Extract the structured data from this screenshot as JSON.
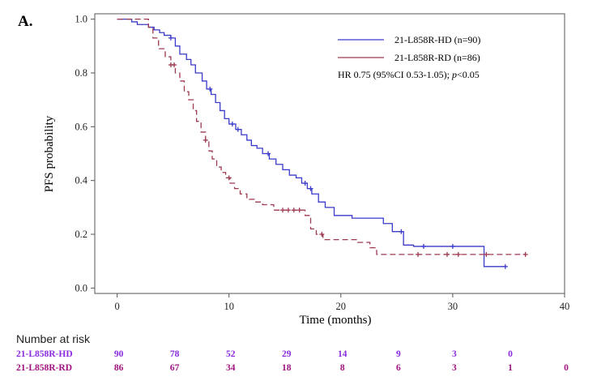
{
  "panel_label": "A.",
  "colors": {
    "hd": "#3a3acc",
    "rd": "#9e3a50",
    "risk_hd": "#8a2be2",
    "risk_rd": "#a0127f"
  },
  "chart_data": {
    "type": "line",
    "subtype": "kaplan-meier",
    "xlabel": "Time (months)",
    "ylabel": "PFS probability",
    "xlim": [
      -2,
      40
    ],
    "ylim": [
      -0.02,
      1.02
    ],
    "xticks": [
      "0",
      "10",
      "20",
      "30",
      "40"
    ],
    "yticks": [
      "0.0",
      "0.2",
      "0.4",
      "0.6",
      "0.8",
      "1.0"
    ],
    "legend_position": "top-right",
    "annotation": {
      "prefix": "HR 0.75 (95%CI 0.53-1.05);  ",
      "p_symbol": "p",
      "suffix": "<0.05"
    },
    "series": [
      {
        "name": "21-L858R-HD (n=90)",
        "style": "solid",
        "x": [
          0,
          1.3,
          1.8,
          2.8,
          3.3,
          3.8,
          4.2,
          4.8,
          5.2,
          5.6,
          6.2,
          6.6,
          7.0,
          7.6,
          8.0,
          8.4,
          8.8,
          9.2,
          9.6,
          10.0,
          10.6,
          11.1,
          11.6,
          12.0,
          12.5,
          13.0,
          13.6,
          14.2,
          14.8,
          15.4,
          16.0,
          16.5,
          17.0,
          17.4,
          18.0,
          18.6,
          19.4,
          21.0,
          23.8,
          24.6,
          25.6,
          26.5,
          28.5,
          30.5,
          32.8,
          34.7
        ],
        "y": [
          1.0,
          0.99,
          0.98,
          0.97,
          0.96,
          0.95,
          0.94,
          0.93,
          0.9,
          0.87,
          0.85,
          0.83,
          0.8,
          0.77,
          0.74,
          0.72,
          0.69,
          0.66,
          0.63,
          0.61,
          0.59,
          0.57,
          0.55,
          0.53,
          0.52,
          0.5,
          0.48,
          0.46,
          0.44,
          0.42,
          0.41,
          0.39,
          0.37,
          0.35,
          0.32,
          0.3,
          0.27,
          0.26,
          0.24,
          0.21,
          0.16,
          0.155,
          0.155,
          0.155,
          0.08,
          0.08
        ],
        "censored_x": [
          4.8,
          8.3,
          10.3,
          10.8,
          13.5,
          16.8,
          17.3,
          25.4,
          27.4,
          30.0,
          34.7
        ]
      },
      {
        "name": "21-L858R-RD (n=86)",
        "style": "dashed",
        "x": [
          0,
          2.8,
          3.2,
          3.7,
          4.3,
          4.8,
          5.2,
          5.6,
          6.0,
          6.4,
          6.8,
          7.1,
          7.5,
          7.9,
          8.2,
          8.5,
          8.9,
          9.3,
          9.7,
          10.1,
          10.5,
          11.0,
          11.6,
          12.3,
          13.0,
          14.0,
          16.8,
          17.3,
          17.8,
          18.4,
          20.0,
          21.5,
          22.6,
          23.2,
          24.0,
          26.5,
          30.0,
          33.0,
          36.5
        ],
        "y": [
          1.0,
          0.97,
          0.93,
          0.89,
          0.86,
          0.83,
          0.8,
          0.77,
          0.73,
          0.7,
          0.66,
          0.62,
          0.58,
          0.55,
          0.51,
          0.48,
          0.45,
          0.43,
          0.41,
          0.39,
          0.37,
          0.35,
          0.33,
          0.32,
          0.31,
          0.29,
          0.27,
          0.22,
          0.2,
          0.18,
          0.18,
          0.17,
          0.15,
          0.125,
          0.125,
          0.125,
          0.125,
          0.125,
          0.125
        ],
        "censored_x": [
          4.8,
          5.1,
          7.9,
          10.0,
          14.8,
          15.3,
          15.8,
          16.3,
          18.3,
          26.9,
          29.5,
          30.5,
          33.0,
          36.5
        ]
      }
    ]
  },
  "risk_table": {
    "title": "Number at risk",
    "times": [
      0,
      5,
      10,
      15,
      20,
      25,
      30,
      35,
      40
    ],
    "rows": [
      {
        "label": "21-L858R-HD",
        "values": [
          "90",
          "78",
          "52",
          "29",
          "14",
          "9",
          "3",
          "0",
          ""
        ]
      },
      {
        "label": "21-L858R-RD",
        "values": [
          "86",
          "67",
          "34",
          "18",
          "8",
          "6",
          "3",
          "1",
          "0"
        ]
      }
    ]
  }
}
